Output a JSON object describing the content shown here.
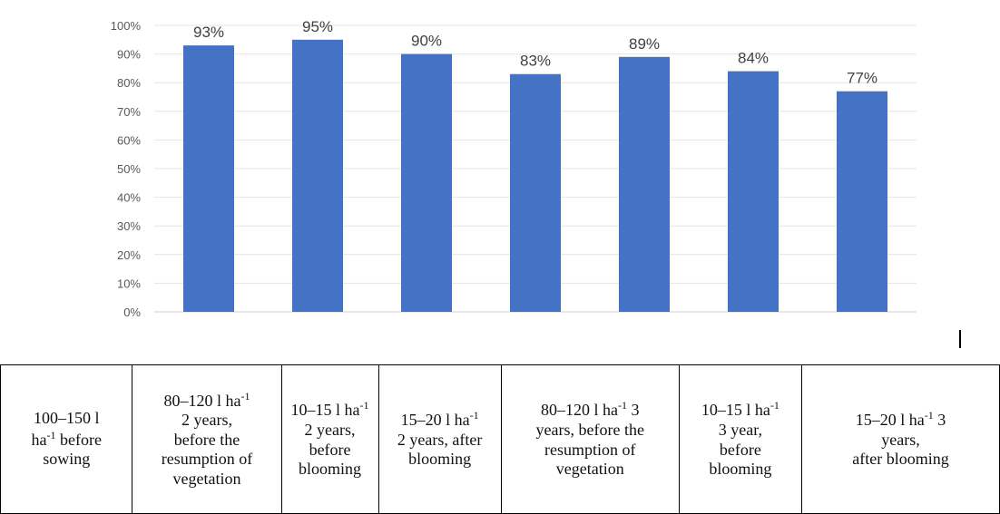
{
  "chart_data": {
    "type": "bar",
    "categories": [
      "100–150 l ha-1 before sowing",
      "80–120 l ha-1 2 years, before the resumption of vegetation",
      "10–15 l ha-1 2 years, before blooming",
      "15–20 l ha-1 2 years, after blooming",
      "80–120 l ha-1 3 years, before the resumption of vegetation",
      "10–15 l ha-1 3 year, before blooming",
      "15–20 l ha-1 3 years, after blooming"
    ],
    "values": [
      93,
      95,
      90,
      83,
      89,
      84,
      77
    ],
    "data_labels": [
      "93%",
      "95%",
      "90%",
      "83%",
      "89%",
      "84%",
      "77%"
    ],
    "ylim": [
      0,
      100
    ],
    "yticks": [
      "0%",
      "10%",
      "20%",
      "30%",
      "40%",
      "50%",
      "60%",
      "70%",
      "80%",
      "90%",
      "100%"
    ],
    "bar_color": "#4472c4",
    "grid": true,
    "title": "",
    "xlabel": "",
    "ylabel": ""
  },
  "table": {
    "cells": [
      {
        "lines": [
          "100–150 l",
          "ha^-1 before",
          "sowing"
        ]
      },
      {
        "lines": [
          "80–120 l ha^-1",
          "2 years,",
          "before the",
          "resumption of",
          "vegetation"
        ]
      },
      {
        "lines": [
          "10–15 l ha^-1",
          "2 years,",
          "before",
          "blooming"
        ]
      },
      {
        "lines": [
          "15–20 l ha^-1",
          "2 years, after",
          "blooming"
        ]
      },
      {
        "lines": [
          "80–120 l ha^-1 3",
          "years, before the",
          "resumption of",
          "vegetation"
        ]
      },
      {
        "lines": [
          "10–15 l ha^-1",
          "3 year,",
          "before",
          "blooming"
        ]
      },
      {
        "lines": [
          "15–20 l ha^-1 3",
          "years,",
          "after blooming"
        ]
      }
    ]
  }
}
